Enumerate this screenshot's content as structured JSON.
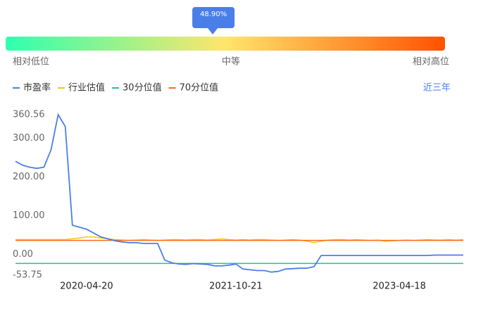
{
  "gauge": {
    "value": 48.9,
    "value_label": "48.90%",
    "lim": [
      0,
      100
    ],
    "labels": [
      "相对低位",
      "中等",
      "相对高位"
    ]
  },
  "range_button": "近三年",
  "chart_data": {
    "type": "line",
    "categories": [
      null,
      null,
      null,
      null,
      null,
      null,
      null,
      null,
      null,
      null,
      "2020-04-20",
      null,
      null,
      null,
      null,
      null,
      null,
      null,
      null,
      null,
      null,
      null,
      null,
      null,
      null,
      null,
      null,
      null,
      null,
      null,
      null,
      "2021-10-21",
      null,
      null,
      null,
      null,
      null,
      null,
      null,
      null,
      null,
      null,
      null,
      null,
      null,
      null,
      null,
      null,
      null,
      null,
      null,
      null,
      null,
      null,
      "2023-04-18",
      null,
      null,
      null,
      null,
      null,
      null,
      null,
      null,
      null
    ],
    "ylim": [
      -53.75,
      360.56
    ],
    "yticks": [
      {
        "value": 360.56,
        "label": "360.56"
      },
      {
        "value": 300,
        "label": "300.00"
      },
      {
        "value": 200,
        "label": "200.00"
      },
      {
        "value": 100,
        "label": "100.00"
      },
      {
        "value": 0,
        "label": "0.00"
      },
      {
        "value": -53.75,
        "label": "-53.75"
      }
    ],
    "series": [
      {
        "name": "市盈率",
        "color": "#4a7ee8",
        "values": [
          240,
          230,
          225,
          222,
          225,
          270,
          360.56,
          330,
          75,
          70,
          65,
          55,
          45,
          40,
          35,
          32,
          30,
          30,
          28,
          28,
          28,
          -15,
          -22,
          -25,
          -26,
          -24,
          -25,
          -26,
          -30,
          -30,
          -28,
          -25,
          -38,
          -40,
          -42,
          -42,
          -46,
          -44,
          -38,
          -37,
          -36,
          -36,
          -32,
          -3,
          -3,
          -3,
          -3,
          -3,
          -3,
          -3,
          -3,
          -3,
          -3,
          -3,
          -3,
          -3,
          -3,
          -3,
          -3,
          -2,
          -2,
          -2,
          -2,
          -2
        ]
      },
      {
        "name": "行业估值",
        "color": "#f5c518",
        "values": [
          38,
          38,
          38,
          38,
          38,
          38,
          38,
          38,
          40,
          42,
          45,
          45,
          42,
          40,
          38,
          37,
          36,
          37,
          38,
          37,
          36,
          37,
          38,
          38,
          37,
          38,
          38,
          37,
          38,
          40,
          38,
          37,
          38,
          37,
          38,
          38,
          37,
          36,
          37,
          38,
          37,
          34,
          30,
          34,
          37,
          38,
          38,
          37,
          38,
          37,
          36,
          37,
          34,
          35,
          36,
          37,
          36,
          37,
          38,
          37,
          37,
          38,
          37,
          38
        ]
      },
      {
        "name": "30分位值",
        "color": "#19c98a",
        "values": [
          -23.5,
          -23.5,
          -23.5,
          -23.5,
          -23.5,
          -23.5,
          -23.5,
          -23.5,
          -23.5,
          -23.5,
          -23.5,
          -23.5,
          -23.5,
          -23.5,
          -23.5,
          -23.5,
          -23.5,
          -23.5,
          -23.5,
          -23.5,
          -23.5,
          -23.5,
          -23.5,
          -23.5,
          -23.5,
          -23.5,
          -23.5,
          -23.5,
          -23.5,
          -23.5,
          -23.5,
          -23.5,
          -23.5,
          -23.5,
          -23.5,
          -23.5,
          -23.5,
          -23.5,
          -23.5,
          -23.5,
          -23.5,
          -23.5,
          -23.5,
          -23.5,
          -23.5,
          -23.5,
          -23.5,
          -23.5,
          -23.5,
          -23.5,
          -23.5,
          -23.5,
          -23.5,
          -23.5,
          -23.5,
          -23.5,
          -23.5,
          -23.5,
          -23.5,
          -23.5,
          -23.5,
          -23.5,
          -23.5,
          -23.5
        ]
      },
      {
        "name": "70分位值",
        "color": "#ff6b17",
        "values": [
          36,
          36,
          36,
          36,
          36,
          36,
          36,
          36,
          36,
          36,
          36,
          36,
          36,
          36,
          36,
          36,
          36,
          36,
          36,
          36,
          36,
          36,
          36,
          36,
          36,
          36,
          36,
          36,
          36,
          36,
          36,
          36,
          36,
          36,
          36,
          36,
          36,
          36,
          36,
          36,
          36,
          36,
          36,
          36,
          36,
          36,
          36,
          36,
          36,
          36,
          36,
          36,
          36,
          36,
          36,
          36,
          36,
          36,
          36,
          36,
          36,
          36,
          36,
          36
        ]
      }
    ]
  }
}
